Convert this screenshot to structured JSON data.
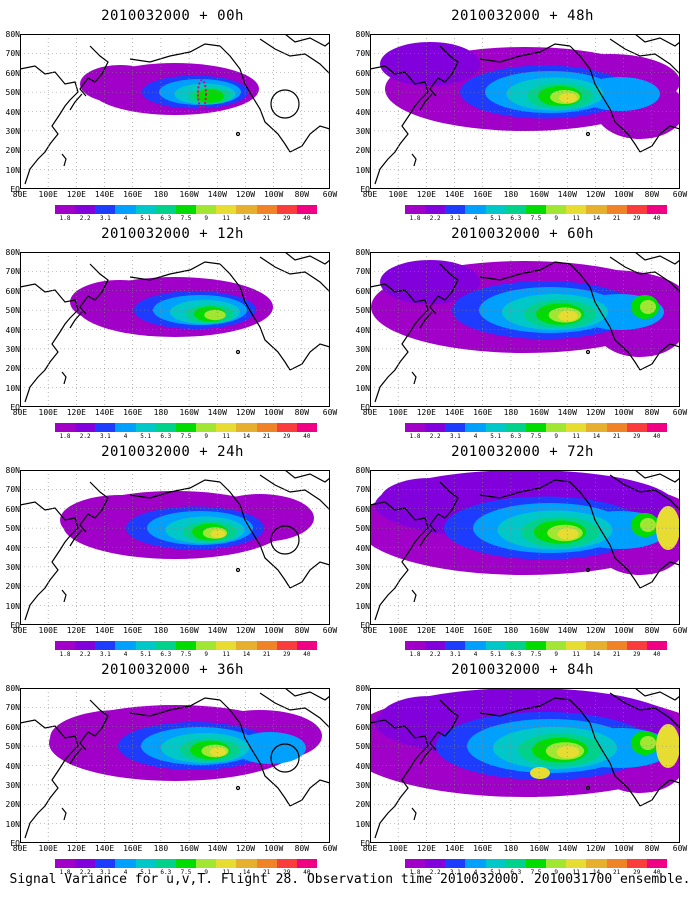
{
  "colorbar": {
    "labels": [
      "1.8",
      "2.2",
      "3.1",
      "4",
      "5.1",
      "6.3",
      "7.5",
      "9",
      "11",
      "14",
      "21",
      "29",
      "40"
    ],
    "colors": [
      "#a000c8",
      "#8200dc",
      "#1e3cff",
      "#00a0ff",
      "#00c8c8",
      "#00d28c",
      "#00dc00",
      "#a0e632",
      "#e6dc32",
      "#e6af2d",
      "#f08228",
      "#fa3c3c",
      "#f00082"
    ]
  },
  "lat_labels": [
    "80N",
    "70N",
    "60N",
    "50N",
    "40N",
    "30N",
    "20N",
    "10N",
    "EQ"
  ],
  "lon_labels": [
    "80E",
    "100E",
    "120E",
    "140E",
    "160E",
    "180",
    "160W",
    "140W",
    "120W",
    "100W",
    "80W",
    "60W"
  ],
  "panels": [
    {
      "id": "f00",
      "title": "2010032000 + 00h",
      "col": 0,
      "row": 0,
      "level": 1
    },
    {
      "id": "f12",
      "title": "2010032000 + 12h",
      "col": 0,
      "row": 1,
      "level": 2
    },
    {
      "id": "f24",
      "title": "2010032000 + 24h",
      "col": 0,
      "row": 2,
      "level": 3
    },
    {
      "id": "f36",
      "title": "2010032000 + 36h",
      "col": 0,
      "row": 3,
      "level": 4
    },
    {
      "id": "f48",
      "title": "2010032000 + 48h",
      "col": 1,
      "row": 0,
      "level": 5
    },
    {
      "id": "f60",
      "title": "2010032000 + 60h",
      "col": 1,
      "row": 1,
      "level": 6
    },
    {
      "id": "f72",
      "title": "2010032000 + 72h",
      "col": 1,
      "row": 2,
      "level": 7
    },
    {
      "id": "f84",
      "title": "2010032000 + 84h",
      "col": 1,
      "row": 3,
      "level": 8
    }
  ],
  "caption": "Signal Variance for u,v,T. Flight 28. Observation time 2010032000. 2010031700 ensemble."
}
